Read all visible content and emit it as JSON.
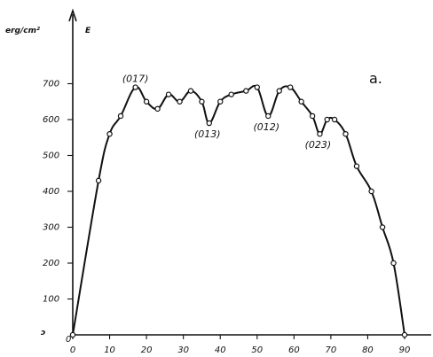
{
  "chart_data": {
    "type": "line",
    "title": "",
    "ylabel_unit": "erg/cm²",
    "ylabel": "E",
    "xlabel": "",
    "panel_label": "a.",
    "y_zero_label": "0",
    "y_zero_mark": "ɔ",
    "xlim": [
      0,
      90
    ],
    "ylim": [
      0,
      800
    ],
    "x_ticks": [
      0,
      10,
      20,
      30,
      40,
      50,
      60,
      70,
      80,
      90
    ],
    "x_tick_labels": [
      "0",
      "10",
      "20",
      "30",
      "40",
      "50",
      "60",
      "70",
      "80",
      "90"
    ],
    "y_ticks": [
      100,
      200,
      300,
      400,
      500,
      600,
      700
    ],
    "y_tick_labels": [
      "100",
      "200",
      "300",
      "400",
      "500",
      "600",
      "700"
    ],
    "grid": false,
    "series": [
      {
        "x": [
          0,
          7,
          10,
          13,
          17,
          20,
          23,
          26,
          29,
          32,
          35,
          37,
          40,
          43,
          47,
          50,
          53,
          56,
          59,
          62,
          65,
          67,
          69,
          71,
          74,
          77,
          81,
          84,
          87,
          90
        ],
        "y": [
          0,
          430,
          560,
          610,
          690,
          650,
          630,
          670,
          650,
          680,
          650,
          590,
          650,
          670,
          680,
          690,
          610,
          680,
          690,
          650,
          610,
          560,
          600,
          600,
          560,
          470,
          400,
          300,
          200,
          0
        ],
        "marker": "open-circle"
      }
    ],
    "annotations": [
      {
        "text": "(017)",
        "x": 17,
        "y": 690
      },
      {
        "text": "(013)",
        "x": 37,
        "y": 590
      },
      {
        "text": "(012)",
        "x": 53,
        "y": 610
      },
      {
        "text": "(023)",
        "x": 67,
        "y": 560
      }
    ]
  }
}
